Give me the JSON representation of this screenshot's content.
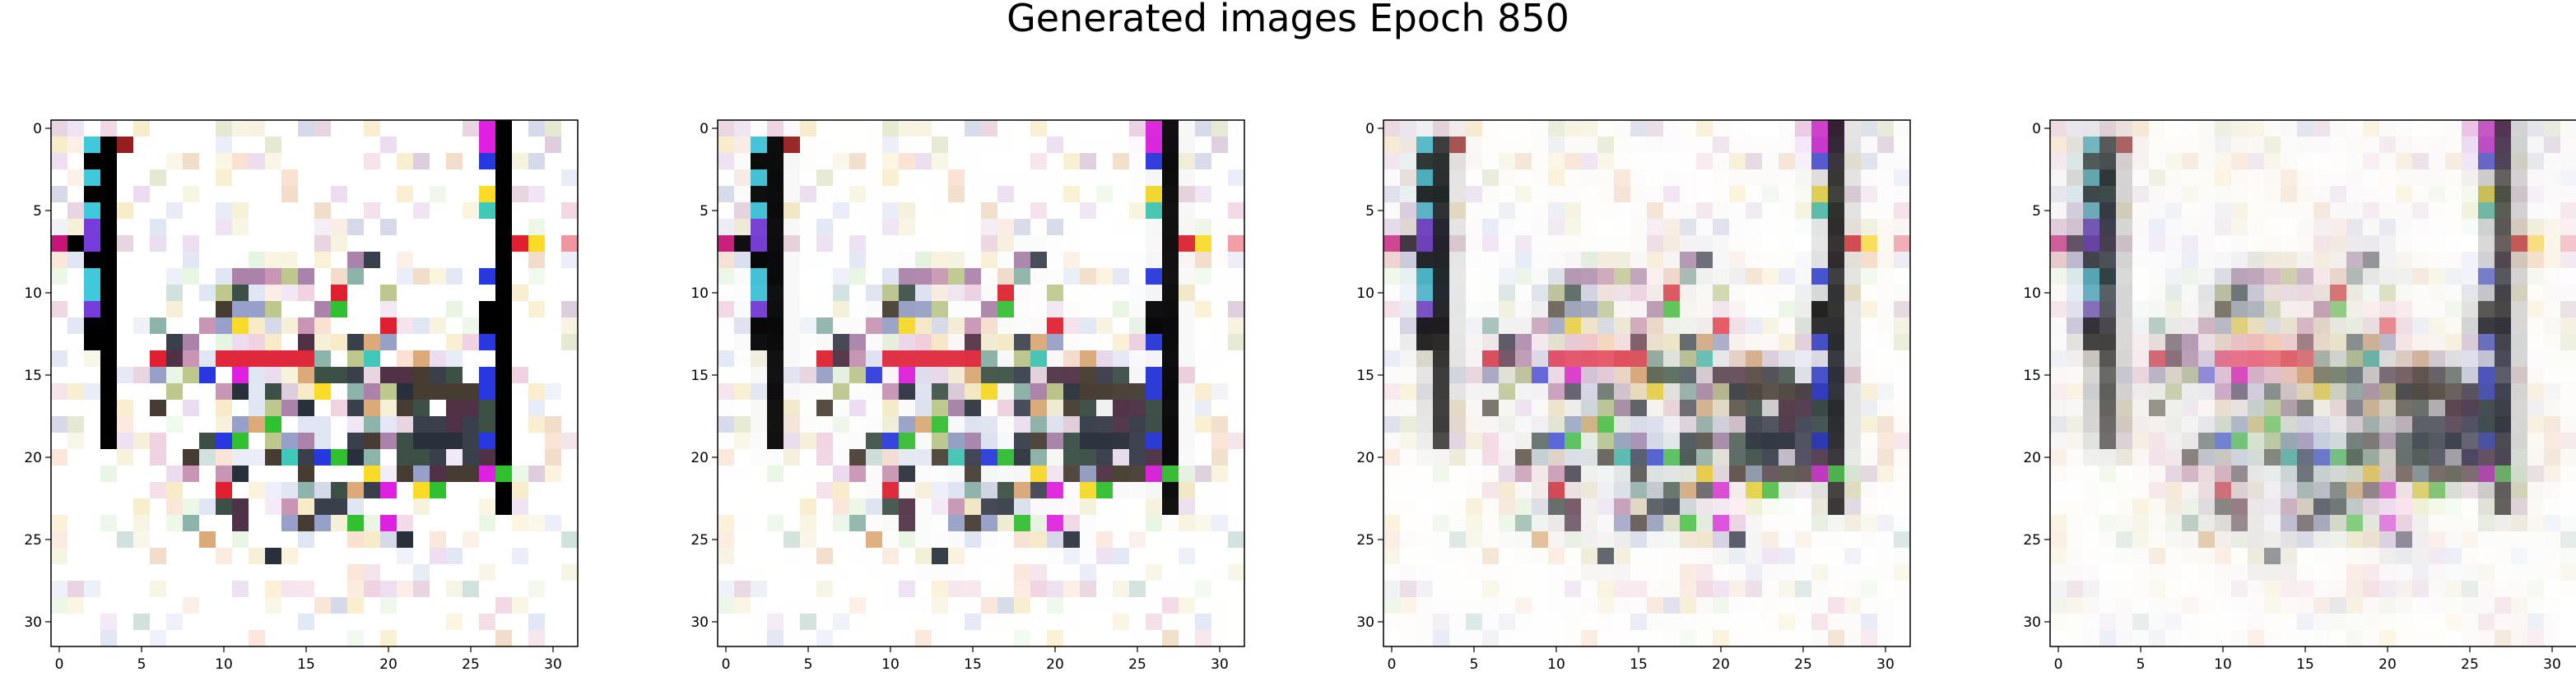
{
  "figure": {
    "title": "Generated images Epoch 850",
    "background": "#ffffff"
  },
  "panels": [
    {
      "x_ticks": [
        "0",
        "5",
        "10",
        "15",
        "20",
        "25",
        "30"
      ],
      "y_ticks": [
        "0",
        "5",
        "10",
        "15",
        "20",
        "25",
        "30"
      ],
      "grid_size": 32,
      "content": "generated image 1 (sharpest)"
    },
    {
      "x_ticks": [
        "0",
        "5",
        "10",
        "15",
        "20",
        "25",
        "30"
      ],
      "y_ticks": [
        "0",
        "5",
        "10",
        "15",
        "20",
        "25",
        "30"
      ],
      "grid_size": 32,
      "content": "generated image 2"
    },
    {
      "x_ticks": [
        "0",
        "5",
        "10",
        "15",
        "20",
        "25",
        "30"
      ],
      "y_ticks": [
        "0",
        "5",
        "10",
        "15",
        "20",
        "25",
        "30"
      ],
      "grid_size": 32,
      "content": "generated image 3"
    },
    {
      "x_ticks": [
        "0",
        "5",
        "10",
        "15",
        "20",
        "25",
        "30"
      ],
      "y_ticks": [
        "0",
        "5",
        "10",
        "15",
        "20",
        "25",
        "30"
      ],
      "grid_size": 32,
      "content": "generated image 4 (most diffuse)"
    }
  ],
  "palette": {
    "black": "#000000",
    "magenta": "#e020e0",
    "blue": "#2838e0",
    "red": "#e02030",
    "dark_slate": "#3a3f4c",
    "teal": "#40c8b8",
    "green": "#30c030"
  }
}
